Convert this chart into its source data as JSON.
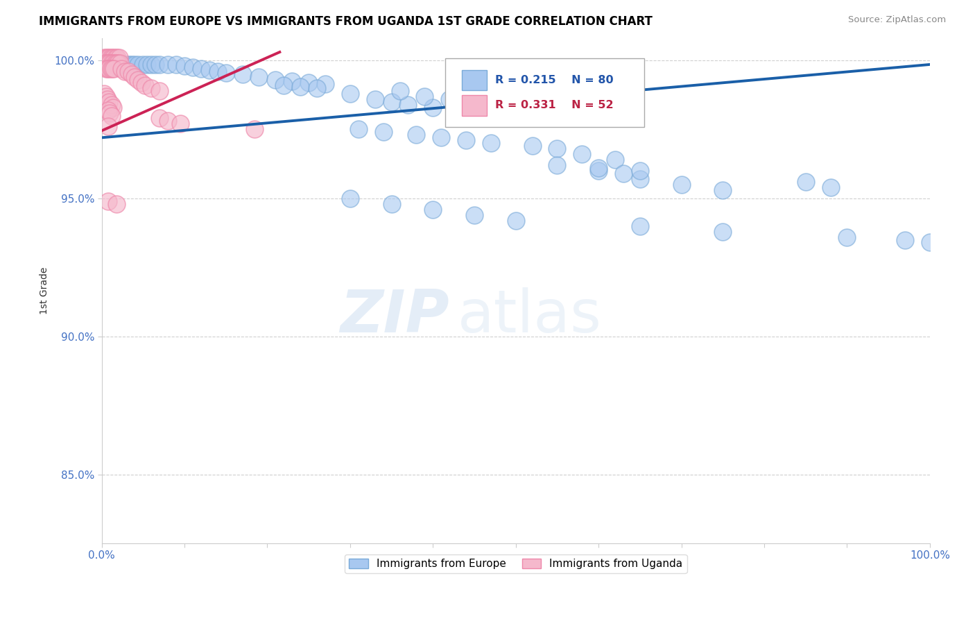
{
  "title": "IMMIGRANTS FROM EUROPE VS IMMIGRANTS FROM UGANDA 1ST GRADE CORRELATION CHART",
  "source": "Source: ZipAtlas.com",
  "ylabel": "1st Grade",
  "xlim": [
    0.0,
    1.0
  ],
  "ylim": [
    0.825,
    1.008
  ],
  "yticks": [
    0.85,
    0.9,
    0.95,
    1.0
  ],
  "ytick_labels": [
    "85.0%",
    "90.0%",
    "95.0%",
    "100.0%"
  ],
  "xticks": [
    0.0,
    0.1,
    0.2,
    0.3,
    0.4,
    0.5,
    0.6,
    0.7,
    0.8,
    0.9,
    1.0
  ],
  "xtick_labels": [
    "0.0%",
    "",
    "",
    "",
    "",
    "",
    "",
    "",
    "",
    "",
    "100.0%"
  ],
  "legend_labels": [
    "Immigrants from Europe",
    "Immigrants from Uganda"
  ],
  "blue_fill": "#A8C8F0",
  "pink_fill": "#F5B8CC",
  "blue_edge": "#7AAAD8",
  "pink_edge": "#EE88AA",
  "blue_line_color": "#1A5FA8",
  "pink_line_color": "#CC2255",
  "R_blue": 0.215,
  "N_blue": 80,
  "R_pink": 0.331,
  "N_pink": 52,
  "blue_line_x0": 0.0,
  "blue_line_y0": 0.972,
  "blue_line_x1": 1.0,
  "blue_line_y1": 0.9985,
  "pink_line_x0": 0.0,
  "pink_line_y0": 0.9745,
  "pink_line_x1": 0.215,
  "pink_line_y1": 1.003,
  "blue_x": [
    0.005,
    0.007,
    0.009,
    0.011,
    0.013,
    0.015,
    0.017,
    0.019,
    0.022,
    0.025,
    0.028,
    0.03,
    0.033,
    0.036,
    0.04,
    0.044,
    0.05,
    0.055,
    0.06,
    0.065,
    0.07,
    0.08,
    0.09,
    0.1,
    0.11,
    0.12,
    0.13,
    0.14,
    0.15,
    0.17,
    0.19,
    0.21,
    0.23,
    0.25,
    0.27,
    0.22,
    0.24,
    0.26,
    0.3,
    0.33,
    0.35,
    0.37,
    0.4,
    0.43,
    0.46,
    0.36,
    0.39,
    0.42,
    0.45,
    0.5,
    0.31,
    0.34,
    0.38,
    0.41,
    0.44,
    0.47,
    0.52,
    0.55,
    0.58,
    0.62,
    0.6,
    0.63,
    0.65,
    0.7,
    0.75,
    0.55,
    0.6,
    0.65,
    0.85,
    0.88,
    0.3,
    0.35,
    0.4,
    0.45,
    0.5,
    0.65,
    0.75,
    0.9,
    0.97,
    1.0
  ],
  "blue_y": [
    0.9985,
    0.9985,
    0.9985,
    0.9985,
    0.9985,
    0.9985,
    0.9985,
    0.9985,
    0.9985,
    0.9985,
    0.9985,
    0.9985,
    0.9985,
    0.9985,
    0.9985,
    0.9985,
    0.9985,
    0.9985,
    0.9985,
    0.9985,
    0.9985,
    0.9985,
    0.9985,
    0.998,
    0.9975,
    0.997,
    0.9965,
    0.996,
    0.9955,
    0.995,
    0.994,
    0.993,
    0.9925,
    0.992,
    0.9915,
    0.991,
    0.9905,
    0.99,
    0.988,
    0.986,
    0.985,
    0.984,
    0.983,
    0.982,
    0.981,
    0.989,
    0.987,
    0.986,
    0.985,
    0.984,
    0.975,
    0.974,
    0.973,
    0.972,
    0.971,
    0.97,
    0.969,
    0.968,
    0.966,
    0.964,
    0.96,
    0.959,
    0.957,
    0.955,
    0.953,
    0.962,
    0.961,
    0.96,
    0.956,
    0.954,
    0.95,
    0.948,
    0.946,
    0.944,
    0.942,
    0.94,
    0.938,
    0.936,
    0.935,
    0.934
  ],
  "pink_x": [
    0.003,
    0.005,
    0.007,
    0.009,
    0.011,
    0.013,
    0.015,
    0.017,
    0.019,
    0.021,
    0.004,
    0.006,
    0.008,
    0.01,
    0.012,
    0.014,
    0.016,
    0.018,
    0.02,
    0.022,
    0.005,
    0.007,
    0.009,
    0.011,
    0.013,
    0.015,
    0.024,
    0.028,
    0.032,
    0.036,
    0.04,
    0.044,
    0.048,
    0.052,
    0.06,
    0.07,
    0.003,
    0.005,
    0.007,
    0.009,
    0.012,
    0.014,
    0.008,
    0.01,
    0.012,
    0.07,
    0.08,
    0.095,
    0.008,
    0.185,
    0.008,
    0.018
  ],
  "pink_y": [
    1.001,
    1.001,
    1.001,
    1.001,
    1.001,
    1.001,
    1.001,
    1.001,
    1.001,
    1.001,
    0.999,
    0.999,
    0.999,
    0.999,
    0.999,
    0.999,
    0.999,
    0.999,
    0.999,
    0.999,
    0.997,
    0.997,
    0.997,
    0.997,
    0.997,
    0.997,
    0.997,
    0.996,
    0.996,
    0.995,
    0.994,
    0.993,
    0.992,
    0.991,
    0.99,
    0.989,
    0.988,
    0.987,
    0.986,
    0.985,
    0.984,
    0.983,
    0.982,
    0.981,
    0.98,
    0.979,
    0.978,
    0.977,
    0.976,
    0.975,
    0.949,
    0.948
  ]
}
